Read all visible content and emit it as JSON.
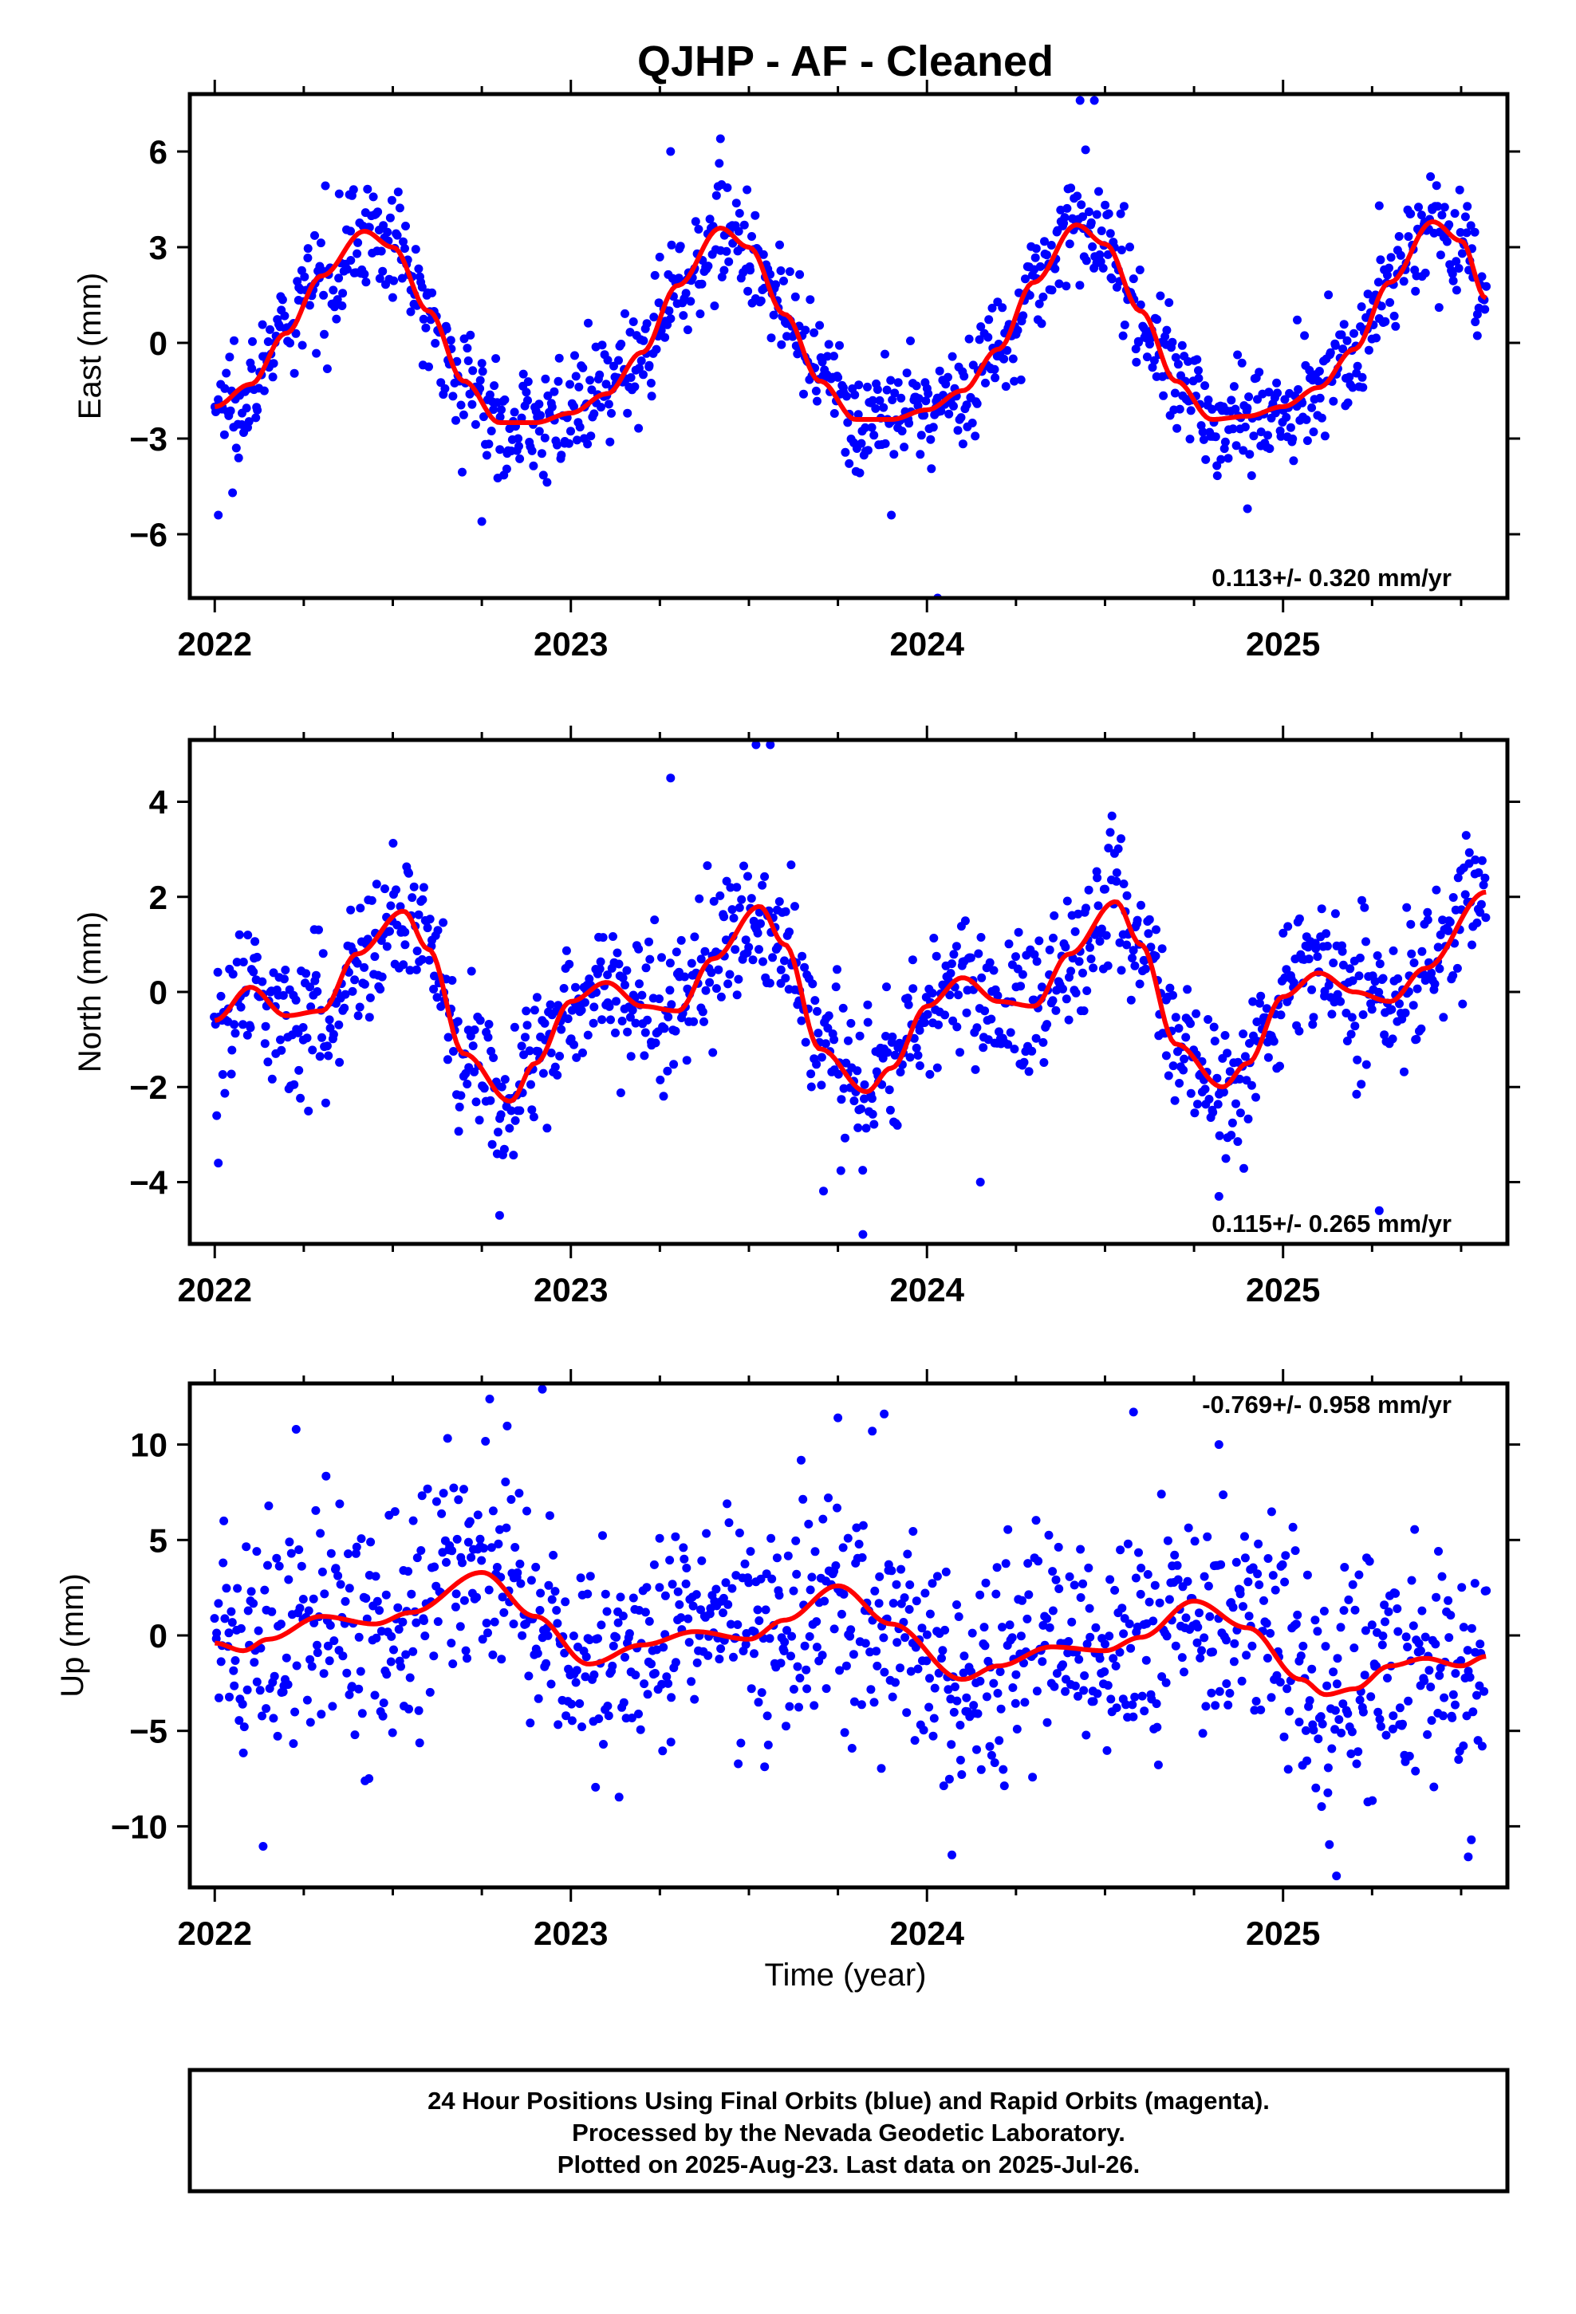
{
  "title": "QJHP  - AF - Cleaned",
  "xlabel": "Time (year)",
  "x_ticks": [
    "2022",
    "2023",
    "2024",
    "2025"
  ],
  "footer": {
    "line1": "24 Hour Positions Using Final Orbits (blue) and Rapid Orbits (magenta).",
    "line2": "Processed by the Nevada Geodetic Laboratory.",
    "line3": "Plotted on 2025-Aug-23. Last data on 2025-Jul-26."
  },
  "colors": {
    "points": "#0000ff",
    "model": "#ff0000",
    "axes": "#000000"
  },
  "chart_data": [
    {
      "type": "scatter",
      "ylabel": "East (mm)",
      "rate": "0.113+/- 0.320 mm/yr",
      "rate_position": "bottom-right",
      "xlim": [
        2021.93,
        2025.63
      ],
      "ylim": [
        -8.0,
        7.8
      ],
      "y_ticks": [
        6,
        3,
        0,
        -3,
        -6
      ],
      "y_tick_labels": [
        "6",
        "3",
        "0",
        "−3",
        "−6"
      ],
      "model_curve": {
        "x": [
          2022.0,
          2022.1,
          2022.2,
          2022.3,
          2022.42,
          2022.5,
          2022.6,
          2022.7,
          2022.8,
          2022.9,
          2023.0,
          2023.1,
          2023.2,
          2023.3,
          2023.42,
          2023.5,
          2023.6,
          2023.7,
          2023.8,
          2023.9,
          2024.0,
          2024.1,
          2024.2,
          2024.3,
          2024.42,
          2024.5,
          2024.6,
          2024.7,
          2024.8,
          2024.9,
          2025.0,
          2025.1,
          2025.2,
          2025.3,
          2025.42,
          2025.5,
          2025.57
        ],
        "y": [
          -2.0,
          -1.3,
          0.3,
          2.1,
          3.5,
          3.0,
          1.0,
          -1.2,
          -2.5,
          -2.5,
          -2.2,
          -1.6,
          -0.3,
          1.8,
          3.6,
          3.0,
          0.9,
          -1.2,
          -2.4,
          -2.4,
          -2.1,
          -1.5,
          -0.2,
          1.9,
          3.7,
          3.1,
          1.0,
          -1.2,
          -2.4,
          -2.3,
          -2.0,
          -1.4,
          -0.2,
          1.9,
          3.8,
          3.2,
          1.4
        ]
      },
      "points": {
        "n": 1100,
        "scatter_sd": 0.85,
        "outliers": [
          [
            2022.01,
            -5.4
          ],
          [
            2022.05,
            -4.7
          ],
          [
            2022.75,
            -5.6
          ],
          [
            2023.28,
            6.0
          ],
          [
            2023.42,
            6.4
          ],
          [
            2023.9,
            -5.4
          ],
          [
            2024.03,
            -8.0
          ],
          [
            2024.43,
            7.6
          ],
          [
            2024.47,
            7.6
          ],
          [
            2024.9,
            -5.2
          ],
          [
            2025.27,
            4.3
          ]
        ]
      }
    },
    {
      "type": "scatter",
      "ylabel": "North (mm)",
      "rate": "0.115+/- 0.265 mm/yr",
      "rate_position": "bottom-right",
      "xlim": [
        2021.93,
        2025.63
      ],
      "ylim": [
        -5.3,
        5.3
      ],
      "y_ticks": [
        4,
        2,
        0,
        -2,
        -4
      ],
      "y_tick_labels": [
        "4",
        "2",
        "0",
        "−2",
        "−4"
      ],
      "model_curve": {
        "x": [
          2022.0,
          2022.1,
          2022.2,
          2022.3,
          2022.4,
          2022.53,
          2022.6,
          2022.7,
          2022.83,
          2022.9,
          2023.0,
          2023.1,
          2023.2,
          2023.3,
          2023.4,
          2023.53,
          2023.6,
          2023.7,
          2023.83,
          2023.9,
          2024.0,
          2024.1,
          2024.2,
          2024.3,
          2024.4,
          2024.53,
          2024.6,
          2024.7,
          2024.83,
          2024.9,
          2025.0,
          2025.1,
          2025.2,
          2025.3,
          2025.4,
          2025.57
        ],
        "y": [
          -0.6,
          0.1,
          -0.5,
          -0.4,
          0.8,
          1.7,
          0.9,
          -1.3,
          -2.3,
          -1.5,
          -0.2,
          0.2,
          -0.3,
          -0.4,
          0.7,
          1.8,
          1.0,
          -1.2,
          -2.1,
          -1.6,
          -0.3,
          0.3,
          -0.2,
          -0.3,
          0.8,
          1.9,
          1.0,
          -1.1,
          -2.0,
          -1.5,
          -0.1,
          0.4,
          0.0,
          -0.2,
          0.5,
          2.1
        ]
      },
      "points": {
        "n": 1100,
        "scatter_sd": 0.75,
        "outliers": [
          [
            2022.01,
            -3.6
          ],
          [
            2022.8,
            -4.7
          ],
          [
            2023.28,
            4.5
          ],
          [
            2023.52,
            5.2
          ],
          [
            2023.56,
            5.2
          ],
          [
            2023.82,
            -5.1
          ],
          [
            2024.15,
            -4.0
          ],
          [
            2024.82,
            -4.3
          ],
          [
            2025.27,
            -4.6
          ]
        ]
      }
    },
    {
      "type": "scatter",
      "ylabel": "Up (mm)",
      "rate": "-0.769+/- 0.958 mm/yr",
      "rate_position": "top-right",
      "xlim": [
        2021.93,
        2025.63
      ],
      "ylim": [
        -13.2,
        13.2
      ],
      "y_ticks": [
        10,
        5,
        0,
        -5,
        -10
      ],
      "y_tick_labels": [
        "10",
        "5",
        "0",
        "−5",
        "−10"
      ],
      "model_curve": {
        "x": [
          2022.0,
          2022.08,
          2022.15,
          2022.3,
          2022.45,
          2022.55,
          2022.75,
          2022.9,
          2023.05,
          2023.2,
          2023.35,
          2023.5,
          2023.6,
          2023.75,
          2023.9,
          2024.1,
          2024.2,
          2024.35,
          2024.5,
          2024.6,
          2024.75,
          2024.9,
          2025.05,
          2025.12,
          2025.2,
          2025.3,
          2025.4,
          2025.5,
          2025.57
        ],
        "y": [
          -0.4,
          -0.8,
          -0.2,
          1.0,
          0.6,
          1.2,
          3.3,
          1.0,
          -1.5,
          -0.5,
          0.2,
          -0.2,
          0.8,
          2.6,
          0.6,
          -2.3,
          -1.6,
          -0.6,
          -0.8,
          -0.1,
          1.8,
          0.4,
          -2.3,
          -3.1,
          -2.8,
          -1.6,
          -1.2,
          -1.6,
          -1.1
        ]
      },
      "points": {
        "n": 1100,
        "scatter_sd": 3.0,
        "outliers": [
          [
            2022.92,
            12.9
          ],
          [
            2023.75,
            11.4
          ],
          [
            2023.88,
            11.6
          ],
          [
            2024.07,
            -11.5
          ],
          [
            2024.58,
            11.7
          ],
          [
            2024.82,
            10.0
          ],
          [
            2025.15,
            -12.6
          ],
          [
            2025.52,
            -11.6
          ]
        ]
      }
    }
  ]
}
